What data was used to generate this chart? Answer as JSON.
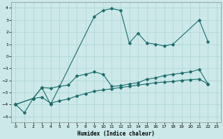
{
  "xlabel": "Humidex (Indice chaleur)",
  "background_color": "#cce8e8",
  "line_color": "#1a6b6b",
  "xlim": [
    -0.5,
    23.5
  ],
  "ylim": [
    -5.5,
    4.5
  ],
  "yticks": [
    -5,
    -4,
    -3,
    -2,
    -1,
    0,
    1,
    2,
    3,
    4
  ],
  "xticks": [
    0,
    1,
    2,
    3,
    4,
    5,
    6,
    7,
    8,
    9,
    10,
    11,
    12,
    13,
    14,
    15,
    16,
    17,
    18,
    19,
    20,
    21,
    22,
    23
  ],
  "line1_x": [
    0,
    1,
    2,
    3,
    4,
    9,
    10,
    11,
    12,
    13,
    14,
    15,
    16,
    17,
    18,
    21,
    22
  ],
  "line1_y": [
    -4.0,
    -4.7,
    -3.5,
    -2.6,
    -4.0,
    3.3,
    3.8,
    3.95,
    3.8,
    1.1,
    1.9,
    1.1,
    1.0,
    0.85,
    1.0,
    3.0,
    1.2
  ],
  "line2_x": [
    0,
    2,
    3,
    4,
    5,
    6,
    7,
    8,
    9,
    10,
    11,
    12,
    13,
    14,
    15,
    16,
    17,
    18,
    19,
    20,
    21,
    22
  ],
  "line2_y": [
    -4.0,
    -3.5,
    -2.6,
    -2.65,
    -2.5,
    -2.4,
    -1.65,
    -1.5,
    -1.3,
    -1.5,
    -2.5,
    -2.45,
    -2.3,
    -2.2,
    -1.9,
    -1.8,
    -1.6,
    -1.5,
    -1.4,
    -1.3,
    -1.1,
    -2.3
  ],
  "line3_x": [
    0,
    2,
    3,
    4,
    5,
    6,
    7,
    8,
    9,
    10,
    11,
    12,
    13,
    14,
    15,
    16,
    17,
    18,
    19,
    20,
    21,
    22
  ],
  "line3_y": [
    -4.0,
    -3.5,
    -3.4,
    -3.9,
    -3.7,
    -3.55,
    -3.3,
    -3.1,
    -2.9,
    -2.8,
    -2.7,
    -2.6,
    -2.5,
    -2.4,
    -2.3,
    -2.2,
    -2.15,
    -2.1,
    -2.0,
    -1.95,
    -1.9,
    -2.3
  ],
  "grid_color": "#aad4d4",
  "marker_size": 2.5,
  "linewidth": 0.8
}
